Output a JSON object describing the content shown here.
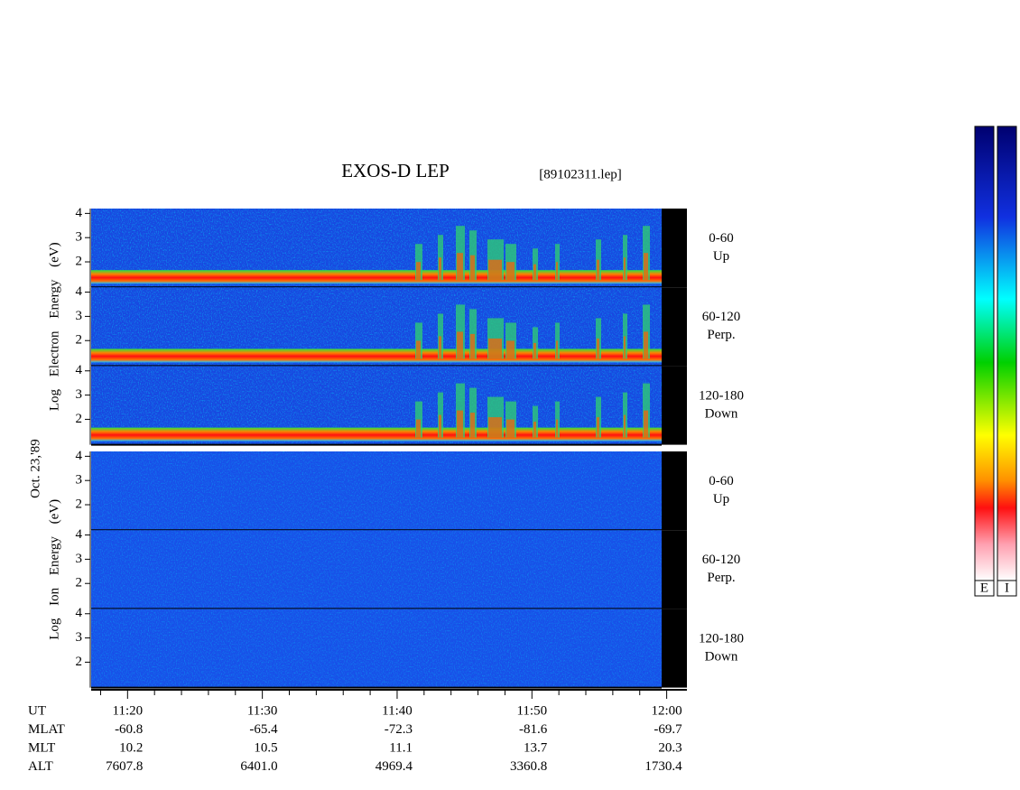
{
  "chart_data": {
    "type": "spectrogram",
    "title": "EXOS-D LEP",
    "file": "[89102311.lep]",
    "date": "Oct. 23,'89",
    "ylim": [
      0.95,
      4.2
    ],
    "yticks": [
      2,
      3,
      4
    ],
    "groups": [
      {
        "name": "Log Electron Energy (eV)",
        "panels": [
          {
            "angle": "0-60",
            "direction": "Up"
          },
          {
            "angle": "60-120",
            "direction": "Perp."
          },
          {
            "angle": "120-180",
            "direction": "Down"
          }
        ]
      },
      {
        "name": "Log Ion Energy (eV)",
        "panels": [
          {
            "angle": "0-60",
            "direction": "Up"
          },
          {
            "angle": "60-120",
            "direction": "Perp."
          },
          {
            "angle": "120-180",
            "direction": "Down"
          }
        ]
      }
    ],
    "xlim": [
      677.3,
      721.5
    ],
    "xticks": [
      {
        "value": 680,
        "label": "11:20"
      },
      {
        "value": 690,
        "label": "11:30"
      },
      {
        "value": 700,
        "label": "11:40"
      },
      {
        "value": 710,
        "label": "11:50"
      },
      {
        "value": 720,
        "label": "12:00"
      }
    ],
    "xminorticks": [
      678,
      682,
      684,
      686,
      688,
      692,
      694,
      696,
      698,
      702,
      704,
      706,
      708,
      712,
      714,
      716,
      718
    ],
    "ephemeris": {
      "labels": [
        "UT",
        "MLAT",
        "MLT",
        "ALT"
      ],
      "rows": [
        [
          "-60.8",
          "-65.4",
          "-72.3",
          "-81.6",
          "-69.7"
        ],
        [
          "10.2",
          "10.5",
          "11.1",
          "13.7",
          "20.3"
        ],
        [
          "7607.8",
          "6401.0",
          "4969.4",
          "3360.8",
          "1730.4"
        ]
      ]
    },
    "colorbars": [
      "E",
      "I"
    ]
  }
}
